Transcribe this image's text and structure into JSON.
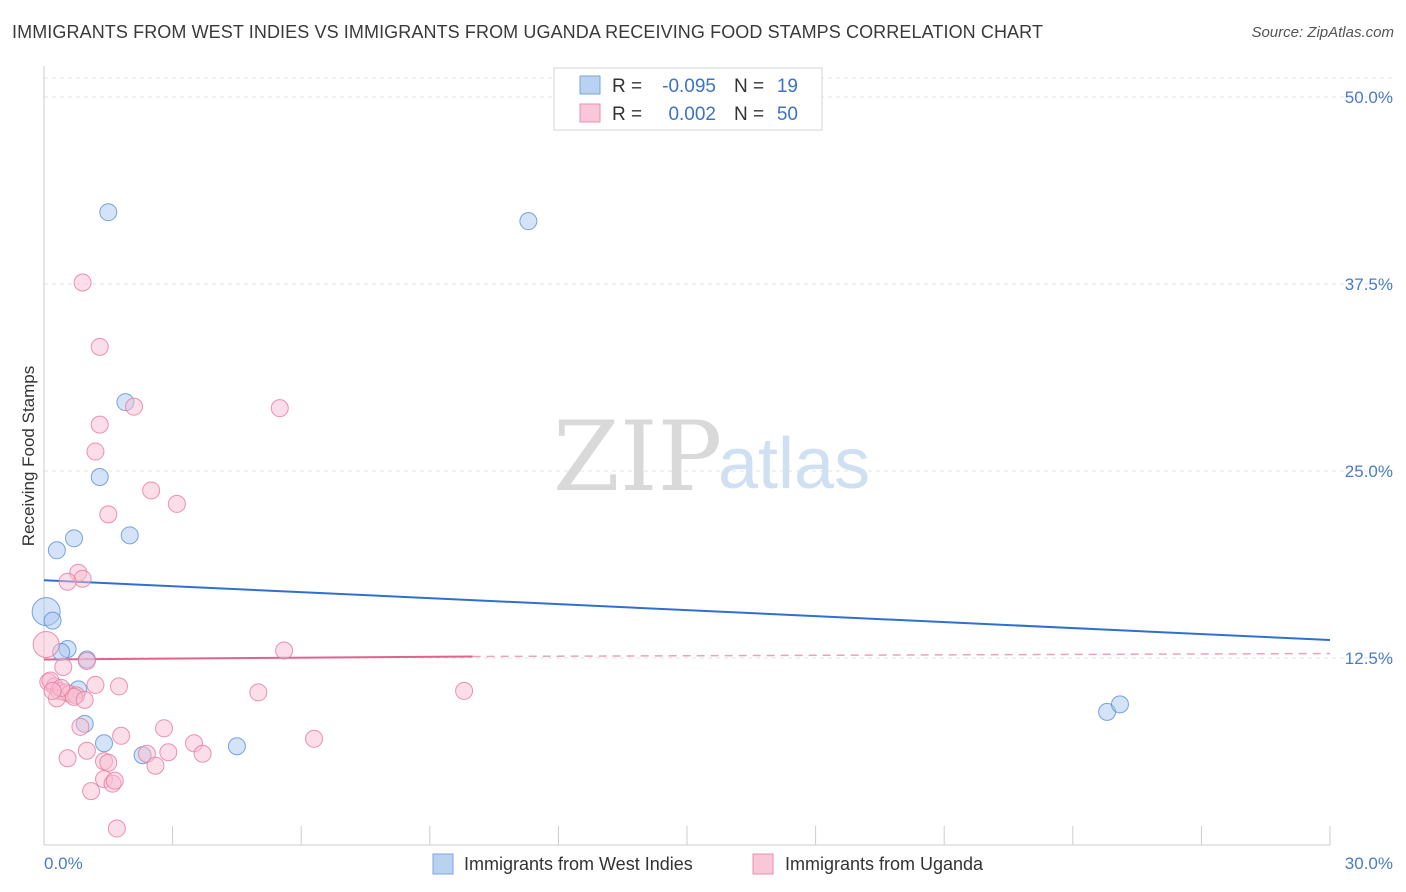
{
  "title": "IMMIGRANTS FROM WEST INDIES VS IMMIGRANTS FROM UGANDA RECEIVING FOOD STAMPS CORRELATION CHART",
  "source": "Source: ZipAtlas.com",
  "watermark": {
    "zip": "ZIP",
    "atlas": "atlas"
  },
  "chart_data": {
    "type": "scatter",
    "title": "IMMIGRANTS FROM WEST INDIES VS IMMIGRANTS FROM UGANDA RECEIVING FOOD STAMPS CORRELATION CHART",
    "xlabel": "",
    "ylabel": "Receiving Food Stamps",
    "xlim": [
      0,
      30
    ],
    "ylim": [
      0,
      50
    ],
    "x_tick_labels": [
      "0.0%",
      "30.0%"
    ],
    "y_ticks": [
      12.5,
      25.0,
      37.5,
      50.0
    ],
    "y_tick_labels": [
      "12.5%",
      "25.0%",
      "37.5%",
      "50.0%"
    ],
    "grid": true,
    "legend": {
      "placement": "top-center",
      "rows": [
        {
          "r_label": "R =",
          "r_value": "-0.095",
          "n_label": "N =",
          "n_value": "19"
        },
        {
          "r_label": "R =",
          "r_value": "0.002",
          "n_label": "N =",
          "n_value": "50"
        }
      ]
    },
    "series": [
      {
        "name": "Immigrants from West Indies",
        "color": "#5b8fd6",
        "fill": "#a9c8ef",
        "trend": {
          "x": [
            0,
            30
          ],
          "y": [
            17.7,
            13.7
          ]
        },
        "points": [
          {
            "x": 1.5,
            "y": 42.3
          },
          {
            "x": 11.3,
            "y": 41.7
          },
          {
            "x": 1.9,
            "y": 29.6
          },
          {
            "x": 1.3,
            "y": 24.6
          },
          {
            "x": 0.7,
            "y": 20.5
          },
          {
            "x": 2.0,
            "y": 20.7
          },
          {
            "x": 0.3,
            "y": 19.7
          },
          {
            "x": 0.05,
            "y": 15.6
          },
          {
            "x": 0.2,
            "y": 15.0
          },
          {
            "x": 0.55,
            "y": 13.1
          },
          {
            "x": 1.0,
            "y": 12.4
          },
          {
            "x": 0.8,
            "y": 10.4
          },
          {
            "x": 0.95,
            "y": 8.1
          },
          {
            "x": 1.4,
            "y": 6.8
          },
          {
            "x": 2.3,
            "y": 6.0
          },
          {
            "x": 4.5,
            "y": 6.6
          },
          {
            "x": 24.8,
            "y": 8.9
          },
          {
            "x": 25.1,
            "y": 9.4
          },
          {
            "x": 0.4,
            "y": 12.9
          }
        ]
      },
      {
        "name": "Immigrants from Uganda",
        "color": "#e57aa0",
        "fill": "#f7bdd0",
        "trend": {
          "x": [
            0,
            10
          ],
          "y": [
            12.4,
            12.6
          ]
        },
        "trend_dashed": {
          "x": [
            10,
            30
          ],
          "y": [
            12.6,
            12.8
          ]
        },
        "points": [
          {
            "x": 0.9,
            "y": 37.6
          },
          {
            "x": 1.3,
            "y": 33.3
          },
          {
            "x": 2.1,
            "y": 29.3
          },
          {
            "x": 5.5,
            "y": 29.2
          },
          {
            "x": 1.3,
            "y": 28.1
          },
          {
            "x": 1.2,
            "y": 26.3
          },
          {
            "x": 2.5,
            "y": 23.7
          },
          {
            "x": 3.1,
            "y": 22.8
          },
          {
            "x": 1.5,
            "y": 22.1
          },
          {
            "x": 0.8,
            "y": 18.2
          },
          {
            "x": 0.9,
            "y": 17.8
          },
          {
            "x": 0.55,
            "y": 17.6
          },
          {
            "x": 0.05,
            "y": 13.4
          },
          {
            "x": 5.6,
            "y": 13.0
          },
          {
            "x": 1.0,
            "y": 12.3
          },
          {
            "x": 0.45,
            "y": 11.9
          },
          {
            "x": 0.1,
            "y": 10.9
          },
          {
            "x": 0.25,
            "y": 10.6
          },
          {
            "x": 1.2,
            "y": 10.7
          },
          {
            "x": 1.75,
            "y": 10.6
          },
          {
            "x": 0.35,
            "y": 10.3
          },
          {
            "x": 0.5,
            "y": 10.2
          },
          {
            "x": 0.6,
            "y": 10.1
          },
          {
            "x": 0.75,
            "y": 10.0
          },
          {
            "x": 0.3,
            "y": 9.8
          },
          {
            "x": 0.7,
            "y": 9.9
          },
          {
            "x": 5.0,
            "y": 10.2
          },
          {
            "x": 9.8,
            "y": 10.3
          },
          {
            "x": 0.85,
            "y": 7.9
          },
          {
            "x": 2.8,
            "y": 7.8
          },
          {
            "x": 1.8,
            "y": 7.3
          },
          {
            "x": 6.3,
            "y": 7.1
          },
          {
            "x": 3.5,
            "y": 6.8
          },
          {
            "x": 1.0,
            "y": 6.3
          },
          {
            "x": 2.4,
            "y": 6.1
          },
          {
            "x": 2.9,
            "y": 6.2
          },
          {
            "x": 3.7,
            "y": 6.1
          },
          {
            "x": 0.55,
            "y": 5.8
          },
          {
            "x": 1.4,
            "y": 5.6
          },
          {
            "x": 1.5,
            "y": 5.5
          },
          {
            "x": 2.6,
            "y": 5.3
          },
          {
            "x": 1.4,
            "y": 4.4
          },
          {
            "x": 1.6,
            "y": 4.1
          },
          {
            "x": 1.65,
            "y": 4.3
          },
          {
            "x": 1.1,
            "y": 3.6
          },
          {
            "x": 1.7,
            "y": 1.1
          },
          {
            "x": 0.15,
            "y": 11.0
          },
          {
            "x": 0.4,
            "y": 10.5
          },
          {
            "x": 0.95,
            "y": 9.7
          },
          {
            "x": 0.2,
            "y": 10.3
          }
        ]
      }
    ]
  }
}
